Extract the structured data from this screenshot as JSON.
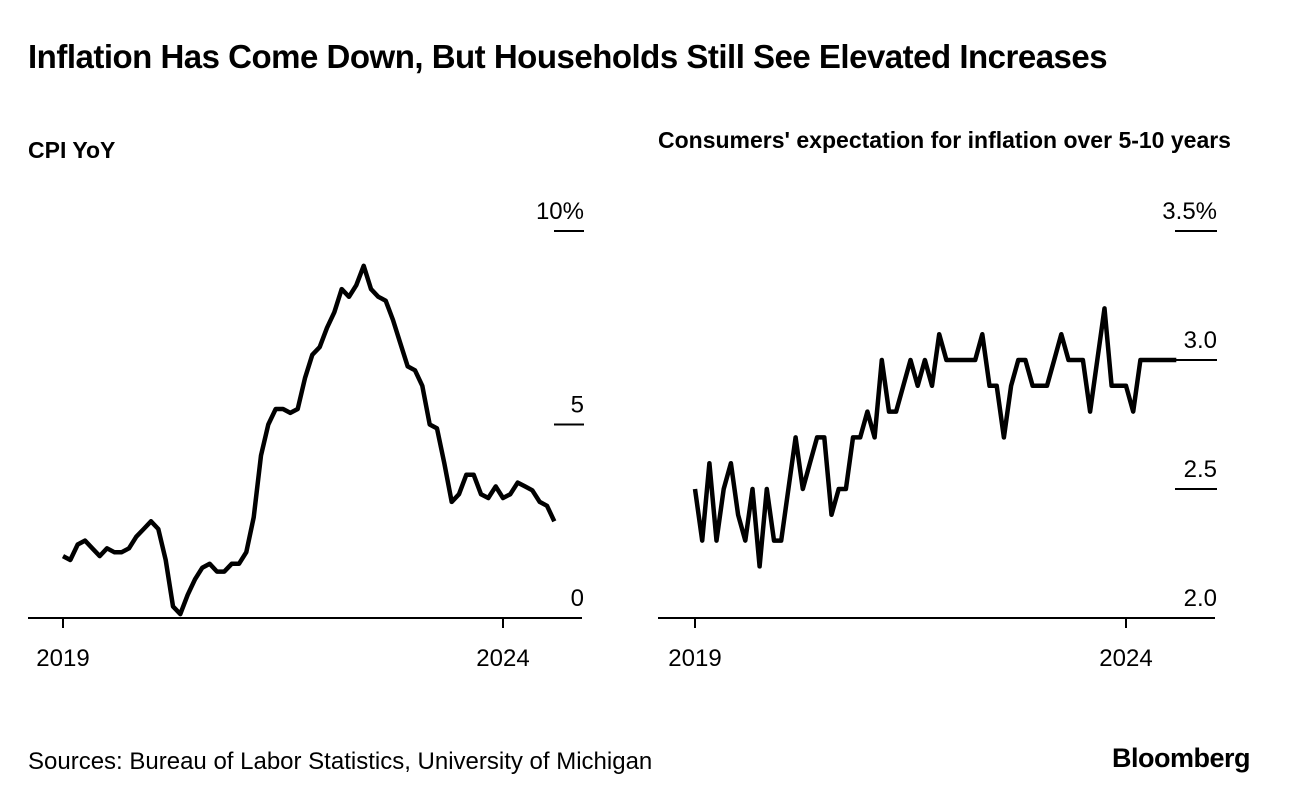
{
  "title": "Inflation Has Come Down, But Households Still See Elevated Increases",
  "source": "Sources: Bureau of Labor Statistics, University of Michigan",
  "logo": "Bloomberg",
  "colors": {
    "line": "#000000",
    "background": "#ffffff"
  },
  "chart_data": [
    {
      "type": "line",
      "title": "CPI YoY",
      "x_range": [
        "2019-01",
        "2024-04"
      ],
      "ylim": [
        0,
        10
      ],
      "y_ticks": [
        {
          "value": 10,
          "label": "10%"
        },
        {
          "value": 5,
          "label": "5"
        },
        {
          "value": 0,
          "label": "0"
        }
      ],
      "x_ticks": [
        {
          "value": "2019-01",
          "label": "2019"
        },
        {
          "value": "2024-01",
          "label": "2024"
        }
      ],
      "grid": false,
      "series": [
        {
          "points": [
            [
              "2019-01",
              1.6
            ],
            [
              "2019-02",
              1.5
            ],
            [
              "2019-03",
              1.9
            ],
            [
              "2019-04",
              2.0
            ],
            [
              "2019-05",
              1.8
            ],
            [
              "2019-06",
              1.6
            ],
            [
              "2019-07",
              1.8
            ],
            [
              "2019-08",
              1.7
            ],
            [
              "2019-09",
              1.7
            ],
            [
              "2019-10",
              1.8
            ],
            [
              "2019-11",
              2.1
            ],
            [
              "2019-12",
              2.3
            ],
            [
              "2020-01",
              2.5
            ],
            [
              "2020-02",
              2.3
            ],
            [
              "2020-03",
              1.5
            ],
            [
              "2020-04",
              0.3
            ],
            [
              "2020-05",
              0.1
            ],
            [
              "2020-06",
              0.6
            ],
            [
              "2020-07",
              1.0
            ],
            [
              "2020-08",
              1.3
            ],
            [
              "2020-09",
              1.4
            ],
            [
              "2020-10",
              1.2
            ],
            [
              "2020-11",
              1.2
            ],
            [
              "2020-12",
              1.4
            ],
            [
              "2021-01",
              1.4
            ],
            [
              "2021-02",
              1.7
            ],
            [
              "2021-03",
              2.6
            ],
            [
              "2021-04",
              4.2
            ],
            [
              "2021-05",
              5.0
            ],
            [
              "2021-06",
              5.4
            ],
            [
              "2021-07",
              5.4
            ],
            [
              "2021-08",
              5.3
            ],
            [
              "2021-09",
              5.4
            ],
            [
              "2021-10",
              6.2
            ],
            [
              "2021-11",
              6.8
            ],
            [
              "2021-12",
              7.0
            ],
            [
              "2022-01",
              7.5
            ],
            [
              "2022-02",
              7.9
            ],
            [
              "2022-03",
              8.5
            ],
            [
              "2022-04",
              8.3
            ],
            [
              "2022-05",
              8.6
            ],
            [
              "2022-06",
              9.1
            ],
            [
              "2022-07",
              8.5
            ],
            [
              "2022-08",
              8.3
            ],
            [
              "2022-09",
              8.2
            ],
            [
              "2022-10",
              7.7
            ],
            [
              "2022-11",
              7.1
            ],
            [
              "2022-12",
              6.5
            ],
            [
              "2023-01",
              6.4
            ],
            [
              "2023-02",
              6.0
            ],
            [
              "2023-03",
              5.0
            ],
            [
              "2023-04",
              4.9
            ],
            [
              "2023-05",
              4.0
            ],
            [
              "2023-06",
              3.0
            ],
            [
              "2023-07",
              3.2
            ],
            [
              "2023-08",
              3.7
            ],
            [
              "2023-09",
              3.7
            ],
            [
              "2023-10",
              3.2
            ],
            [
              "2023-11",
              3.1
            ],
            [
              "2023-12",
              3.4
            ],
            [
              "2024-01",
              3.1
            ],
            [
              "2024-02",
              3.2
            ],
            [
              "2024-03",
              3.5
            ],
            [
              "2024-04",
              3.4
            ],
            [
              "2024-05",
              3.3
            ],
            [
              "2024-06",
              3.0
            ],
            [
              "2024-07",
              2.9
            ],
            [
              "2024-08",
              2.5
            ]
          ]
        }
      ]
    },
    {
      "type": "line",
      "title": "Consumers' expectation for inflation over 5-10 years",
      "x_range": [
        "2019-01",
        "2024-04"
      ],
      "ylim": [
        2.0,
        3.5
      ],
      "y_ticks": [
        {
          "value": 3.5,
          "label": "3.5%"
        },
        {
          "value": 3.0,
          "label": "3.0"
        },
        {
          "value": 2.5,
          "label": "2.5"
        },
        {
          "value": 2.0,
          "label": "2.0"
        }
      ],
      "x_ticks": [
        {
          "value": "2019-01",
          "label": "2019"
        },
        {
          "value": "2024-01",
          "label": "2024"
        }
      ],
      "grid": false,
      "series": [
        {
          "points": [
            [
              "2019-01",
              2.5
            ],
            [
              "2019-02",
              2.3
            ],
            [
              "2019-03",
              2.6
            ],
            [
              "2019-04",
              2.3
            ],
            [
              "2019-05",
              2.5
            ],
            [
              "2019-06",
              2.6
            ],
            [
              "2019-07",
              2.4
            ],
            [
              "2019-08",
              2.3
            ],
            [
              "2019-09",
              2.5
            ],
            [
              "2019-10",
              2.2
            ],
            [
              "2019-11",
              2.5
            ],
            [
              "2019-12",
              2.3
            ],
            [
              "2020-01",
              2.3
            ],
            [
              "2020-02",
              2.5
            ],
            [
              "2020-03",
              2.7
            ],
            [
              "2020-04",
              2.5
            ],
            [
              "2020-05",
              2.6
            ],
            [
              "2020-06",
              2.7
            ],
            [
              "2020-07",
              2.7
            ],
            [
              "2020-08",
              2.4
            ],
            [
              "2020-09",
              2.5
            ],
            [
              "2020-10",
              2.5
            ],
            [
              "2020-11",
              2.7
            ],
            [
              "2020-12",
              2.7
            ],
            [
              "2021-01",
              2.8
            ],
            [
              "2021-02",
              2.7
            ],
            [
              "2021-03",
              3.0
            ],
            [
              "2021-04",
              2.8
            ],
            [
              "2021-05",
              2.8
            ],
            [
              "2021-06",
              2.9
            ],
            [
              "2021-07",
              3.0
            ],
            [
              "2021-08",
              2.9
            ],
            [
              "2021-09",
              3.0
            ],
            [
              "2021-10",
              2.9
            ],
            [
              "2021-11",
              3.1
            ],
            [
              "2021-12",
              3.0
            ],
            [
              "2022-01",
              3.0
            ],
            [
              "2022-02",
              3.0
            ],
            [
              "2022-03",
              3.0
            ],
            [
              "2022-04",
              3.0
            ],
            [
              "2022-05",
              3.1
            ],
            [
              "2022-06",
              2.9
            ],
            [
              "2022-07",
              2.9
            ],
            [
              "2022-08",
              2.7
            ],
            [
              "2022-09",
              2.9
            ],
            [
              "2022-10",
              3.0
            ],
            [
              "2022-11",
              3.0
            ],
            [
              "2022-12",
              2.9
            ],
            [
              "2023-01",
              2.9
            ],
            [
              "2023-02",
              2.9
            ],
            [
              "2023-03",
              3.0
            ],
            [
              "2023-04",
              3.1
            ],
            [
              "2023-05",
              3.0
            ],
            [
              "2023-06",
              3.0
            ],
            [
              "2023-07",
              3.0
            ],
            [
              "2023-08",
              2.8
            ],
            [
              "2023-09",
              3.0
            ],
            [
              "2023-10",
              3.2
            ],
            [
              "2023-11",
              2.9
            ],
            [
              "2023-12",
              2.9
            ],
            [
              "2024-01",
              2.9
            ],
            [
              "2024-02",
              2.8
            ],
            [
              "2024-03",
              3.0
            ],
            [
              "2024-04",
              3.0
            ],
            [
              "2024-05",
              3.0
            ],
            [
              "2024-06",
              3.0
            ],
            [
              "2024-07",
              3.0
            ],
            [
              "2024-08",
              3.0
            ]
          ]
        }
      ]
    }
  ]
}
